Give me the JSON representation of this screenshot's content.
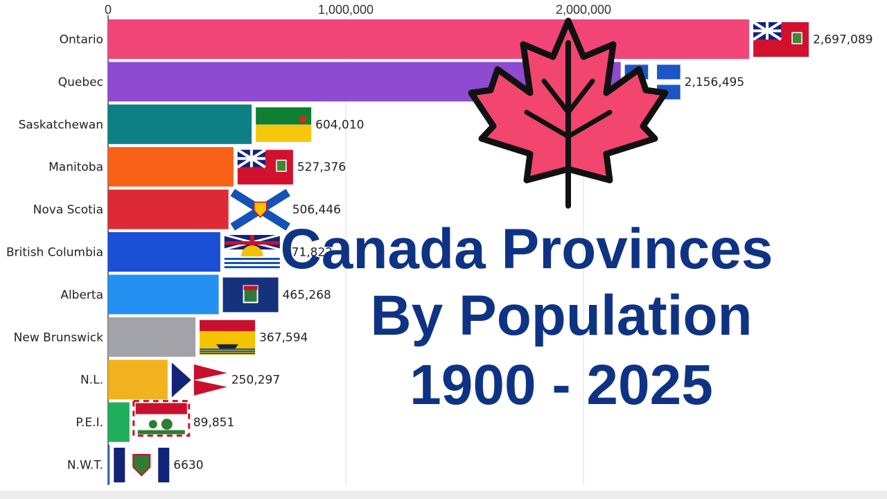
{
  "chart_data": {
    "type": "bar",
    "orientation": "horizontal",
    "categories": [
      "Ontario",
      "Quebec",
      "Saskatchewan",
      "Manitoba",
      "Nova Scotia",
      "British Columbia",
      "Alberta",
      "New Brunswick",
      "N.L.",
      "P.E.I.",
      "N.W.T."
    ],
    "values": [
      2697089,
      2156495,
      604010,
      527376,
      506446,
      471822,
      465268,
      367594,
      250297,
      89851,
      6630
    ],
    "value_labels": [
      "2,697,089",
      "2,156,495",
      "604,010",
      "527,376",
      "506,446",
      "471,822",
      "465,268",
      "367,594",
      "250,297",
      "89,851",
      "6630"
    ],
    "colors": [
      "#f24679",
      "#8e4ad0",
      "#0e7f85",
      "#f86118",
      "#dd2a36",
      "#1a4fd6",
      "#2490f2",
      "#a1a3a8",
      "#f0b21d",
      "#1fae5b",
      "#2a5bd7"
    ],
    "xticks": [
      0,
      1000000,
      2000000
    ],
    "xtick_labels": [
      "0",
      "1,000,000",
      "2,000,000"
    ],
    "xlim": [
      0,
      2700000
    ],
    "grid": true
  },
  "title": {
    "line1": "Canada Provinces",
    "line2": "By Population",
    "line3": "1900 - 2025"
  },
  "icons": {
    "leaf": "maple-leaf-icon",
    "flags": [
      "ontario-flag-icon",
      "quebec-flag-icon",
      "saskatchewan-flag-icon",
      "manitoba-flag-icon",
      "nova-scotia-flag-icon",
      "british-columbia-flag-icon",
      "alberta-flag-icon",
      "new-brunswick-flag-icon",
      "newfoundland-flag-icon",
      "pei-flag-icon",
      "nwt-flag-icon"
    ]
  }
}
